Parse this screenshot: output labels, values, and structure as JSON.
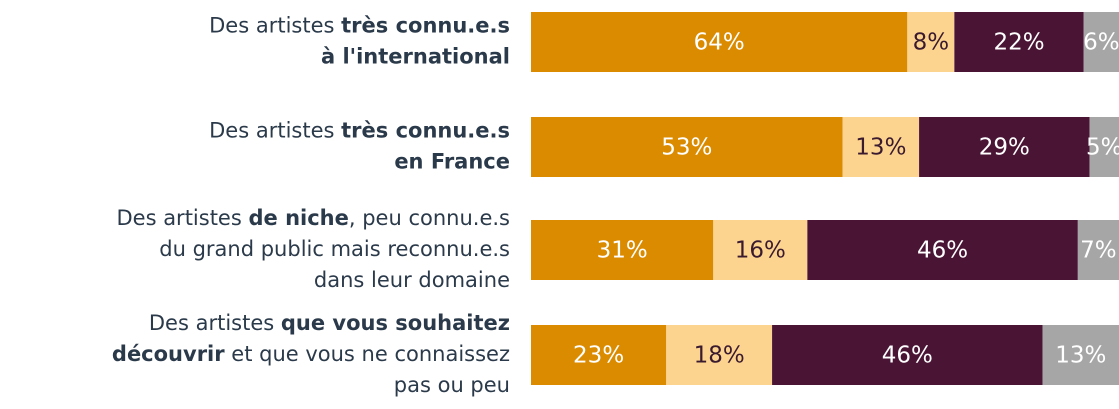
{
  "chart_data": {
    "type": "stacked-bar-horizontal",
    "categories": [
      [
        [
          {
            "text": "Des artistes ",
            "bold": false
          },
          {
            "text": "très connu.e.s",
            "bold": true
          }
        ],
        [
          {
            "text": "à l'international",
            "bold": true
          }
        ]
      ],
      [
        [
          {
            "text": "Des artistes ",
            "bold": false
          },
          {
            "text": "très connu.e.s",
            "bold": true
          }
        ],
        [
          {
            "text": "en France",
            "bold": true
          }
        ]
      ],
      [
        [
          {
            "text": "Des artistes ",
            "bold": false
          },
          {
            "text": "de niche",
            "bold": true
          },
          {
            "text": ", peu connu.e.s",
            "bold": false
          }
        ],
        [
          {
            "text": "du grand public mais reconnu.e.s",
            "bold": false
          }
        ],
        [
          {
            "text": "dans leur domaine",
            "bold": false
          }
        ]
      ],
      [
        [
          {
            "text": "Des artistes ",
            "bold": false
          },
          {
            "text": "que vous souhaitez",
            "bold": true
          }
        ],
        [
          {
            "text": "découvrir",
            "bold": true
          },
          {
            "text": " et que vous ne connaissez",
            "bold": false
          }
        ],
        [
          {
            "text": "pas ou peu",
            "bold": false
          }
        ]
      ]
    ],
    "series": [
      {
        "color": "#db8b00",
        "label_color": "#ffffff",
        "values": [
          64,
          53,
          31,
          23
        ],
        "value_labels": [
          "64%",
          "53%",
          "31%",
          "23%"
        ]
      },
      {
        "color": "#fdd48f",
        "label_color": "#3a1a2e",
        "values": [
          8,
          13,
          16,
          18
        ],
        "value_labels": [
          "8%",
          "13%",
          "16%",
          "18%"
        ]
      },
      {
        "color": "#4a1535",
        "label_color": "#ffffff",
        "values": [
          22,
          29,
          46,
          46
        ],
        "value_labels": [
          "22%",
          "29%",
          "46%",
          "46%"
        ]
      },
      {
        "color": "#a6a6a6",
        "label_color": "#ffffff",
        "values": [
          6,
          5,
          7,
          13
        ],
        "value_labels": [
          "6%",
          "5%",
          "7%",
          "13%"
        ]
      }
    ]
  }
}
